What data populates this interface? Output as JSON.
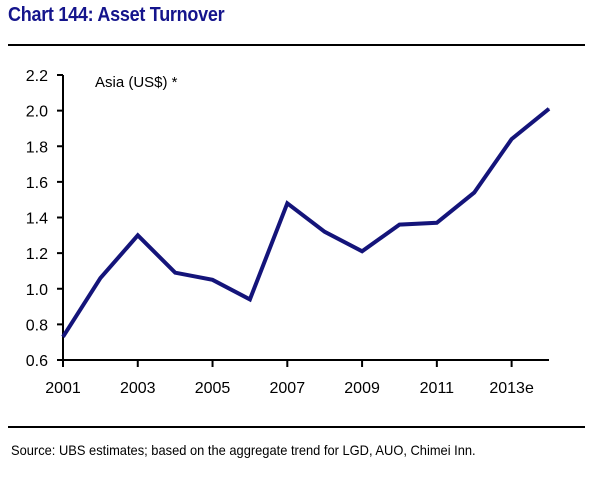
{
  "chart_data": {
    "type": "line",
    "title": "Chart 144: Asset Turnover",
    "annotation": "Asia (US$) *",
    "source": "Source: UBS estimates; based on the aggregate trend for LGD, AUO, Chimei Inn.",
    "xlabel": "",
    "ylabel": "",
    "x": [
      2001,
      2002,
      2003,
      2004,
      2005,
      2006,
      2007,
      2008,
      2009,
      2010,
      2011,
      2012,
      2013,
      2014
    ],
    "xlim": [
      2001,
      2014
    ],
    "x_tick_values": [
      2001,
      2003,
      2005,
      2007,
      2009,
      2011,
      2013
    ],
    "x_tick_labels": [
      "2001",
      "2003",
      "2005",
      "2007",
      "2009",
      "2011",
      "2013e"
    ],
    "ylim": [
      0.6,
      2.2
    ],
    "y_ticks": [
      0.6,
      0.8,
      1.0,
      1.2,
      1.4,
      1.6,
      1.8,
      2.0,
      2.2
    ],
    "y_tick_labels": [
      "0.6",
      "0.8",
      "1.0",
      "1.2",
      "1.4",
      "1.6",
      "1.8",
      "2.0",
      "2.2"
    ],
    "grid": false,
    "series": [
      {
        "name": "Asia (US$) *",
        "color": "#14147a",
        "values": [
          0.73,
          1.06,
          1.3,
          1.09,
          1.05,
          0.94,
          1.48,
          1.32,
          1.21,
          1.36,
          1.37,
          1.54,
          1.84,
          2.01
        ]
      }
    ]
  }
}
